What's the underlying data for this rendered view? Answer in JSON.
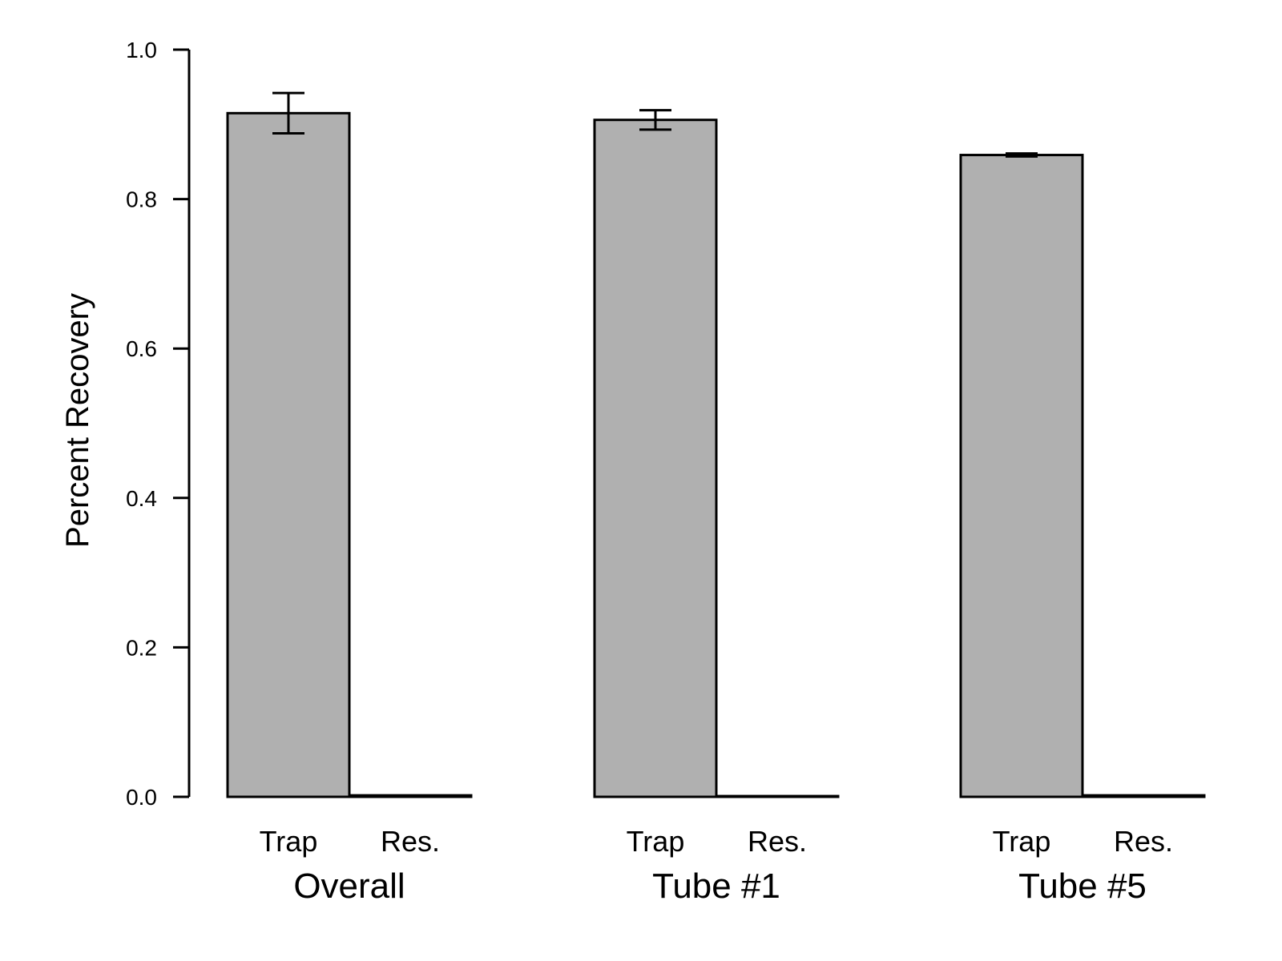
{
  "chart_data": {
    "type": "bar",
    "ylabel": "Percent Recovery",
    "xlabel": "",
    "ylim": [
      0,
      1
    ],
    "y_ticks": [
      "0.0",
      "0.2",
      "0.4",
      "0.6",
      "0.8",
      "1.0"
    ],
    "bar_color": "#b0b0b0",
    "edge_color": "#000000",
    "groups": [
      {
        "label": "Overall",
        "bars": [
          {
            "category": "Trap",
            "value": 0.915,
            "error": 0.027
          },
          {
            "category": "Res.",
            "value": 0.002,
            "error": 0.0
          }
        ]
      },
      {
        "label": "Tube #1",
        "bars": [
          {
            "category": "Trap",
            "value": 0.906,
            "error": 0.013
          },
          {
            "category": "Res.",
            "value": 0.001,
            "error": 0.0
          }
        ]
      },
      {
        "label": "Tube #5",
        "bars": [
          {
            "category": "Trap",
            "value": 0.859,
            "error": 0.002
          },
          {
            "category": "Res.",
            "value": 0.002,
            "error": 0.0
          }
        ]
      }
    ]
  }
}
